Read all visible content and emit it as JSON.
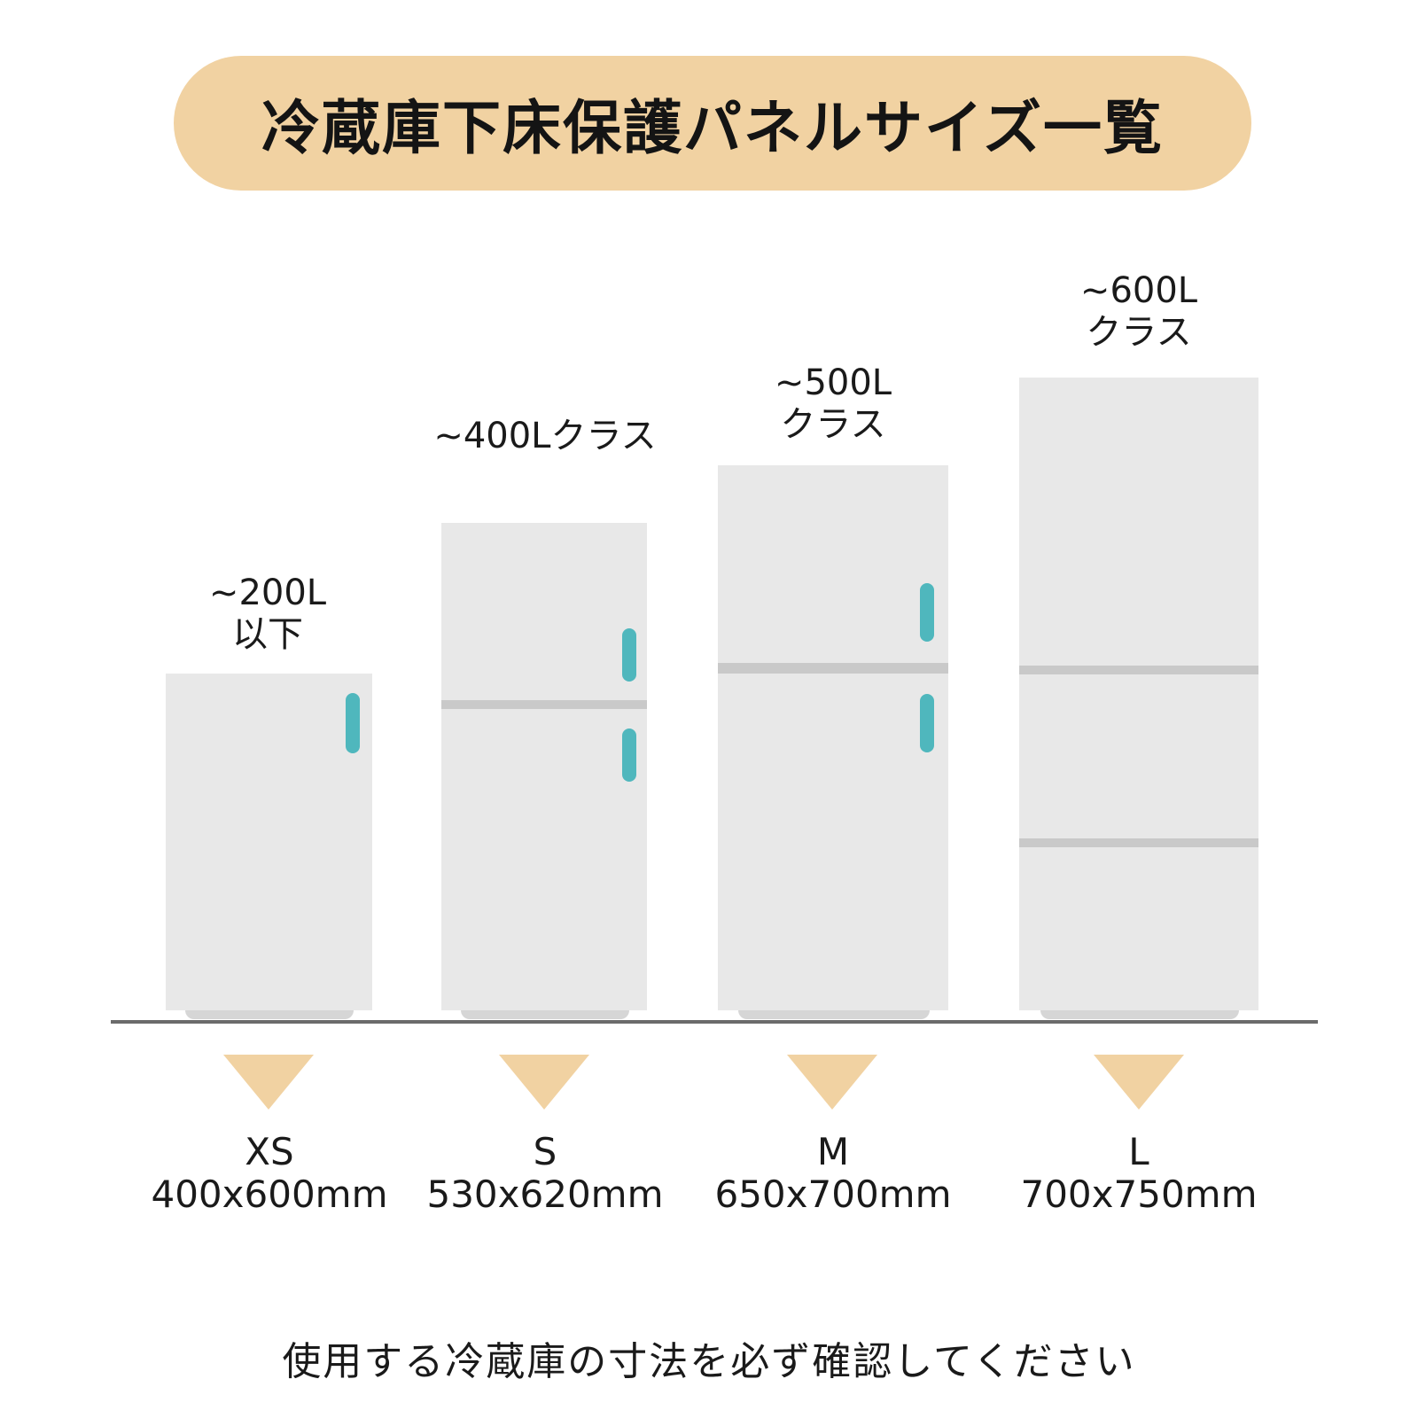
{
  "title": "冷蔵庫下床保護パネルサイズ一覧",
  "fridges": [
    {
      "capacity_lines": [
        "~200L",
        "以下"
      ],
      "size_code": "XS",
      "dimensions": "400x600mm"
    },
    {
      "capacity_lines": [
        "~400Lクラス"
      ],
      "size_code": "S",
      "dimensions": "530x620mm"
    },
    {
      "capacity_lines": [
        "~500L",
        "クラス"
      ],
      "size_code": "M",
      "dimensions": "650x700mm"
    },
    {
      "capacity_lines": [
        "~600L",
        "クラス"
      ],
      "size_code": "L",
      "dimensions": "700x750mm"
    }
  ],
  "note": "使用する冷蔵庫の寸法を必ず確認してください",
  "colors": {
    "accent": "#f1d2a2",
    "fridge_body": "#e8e8e8",
    "handle": "#4fb7bd",
    "divider": "#c9c9c9",
    "floor": "#6b6b6b"
  }
}
